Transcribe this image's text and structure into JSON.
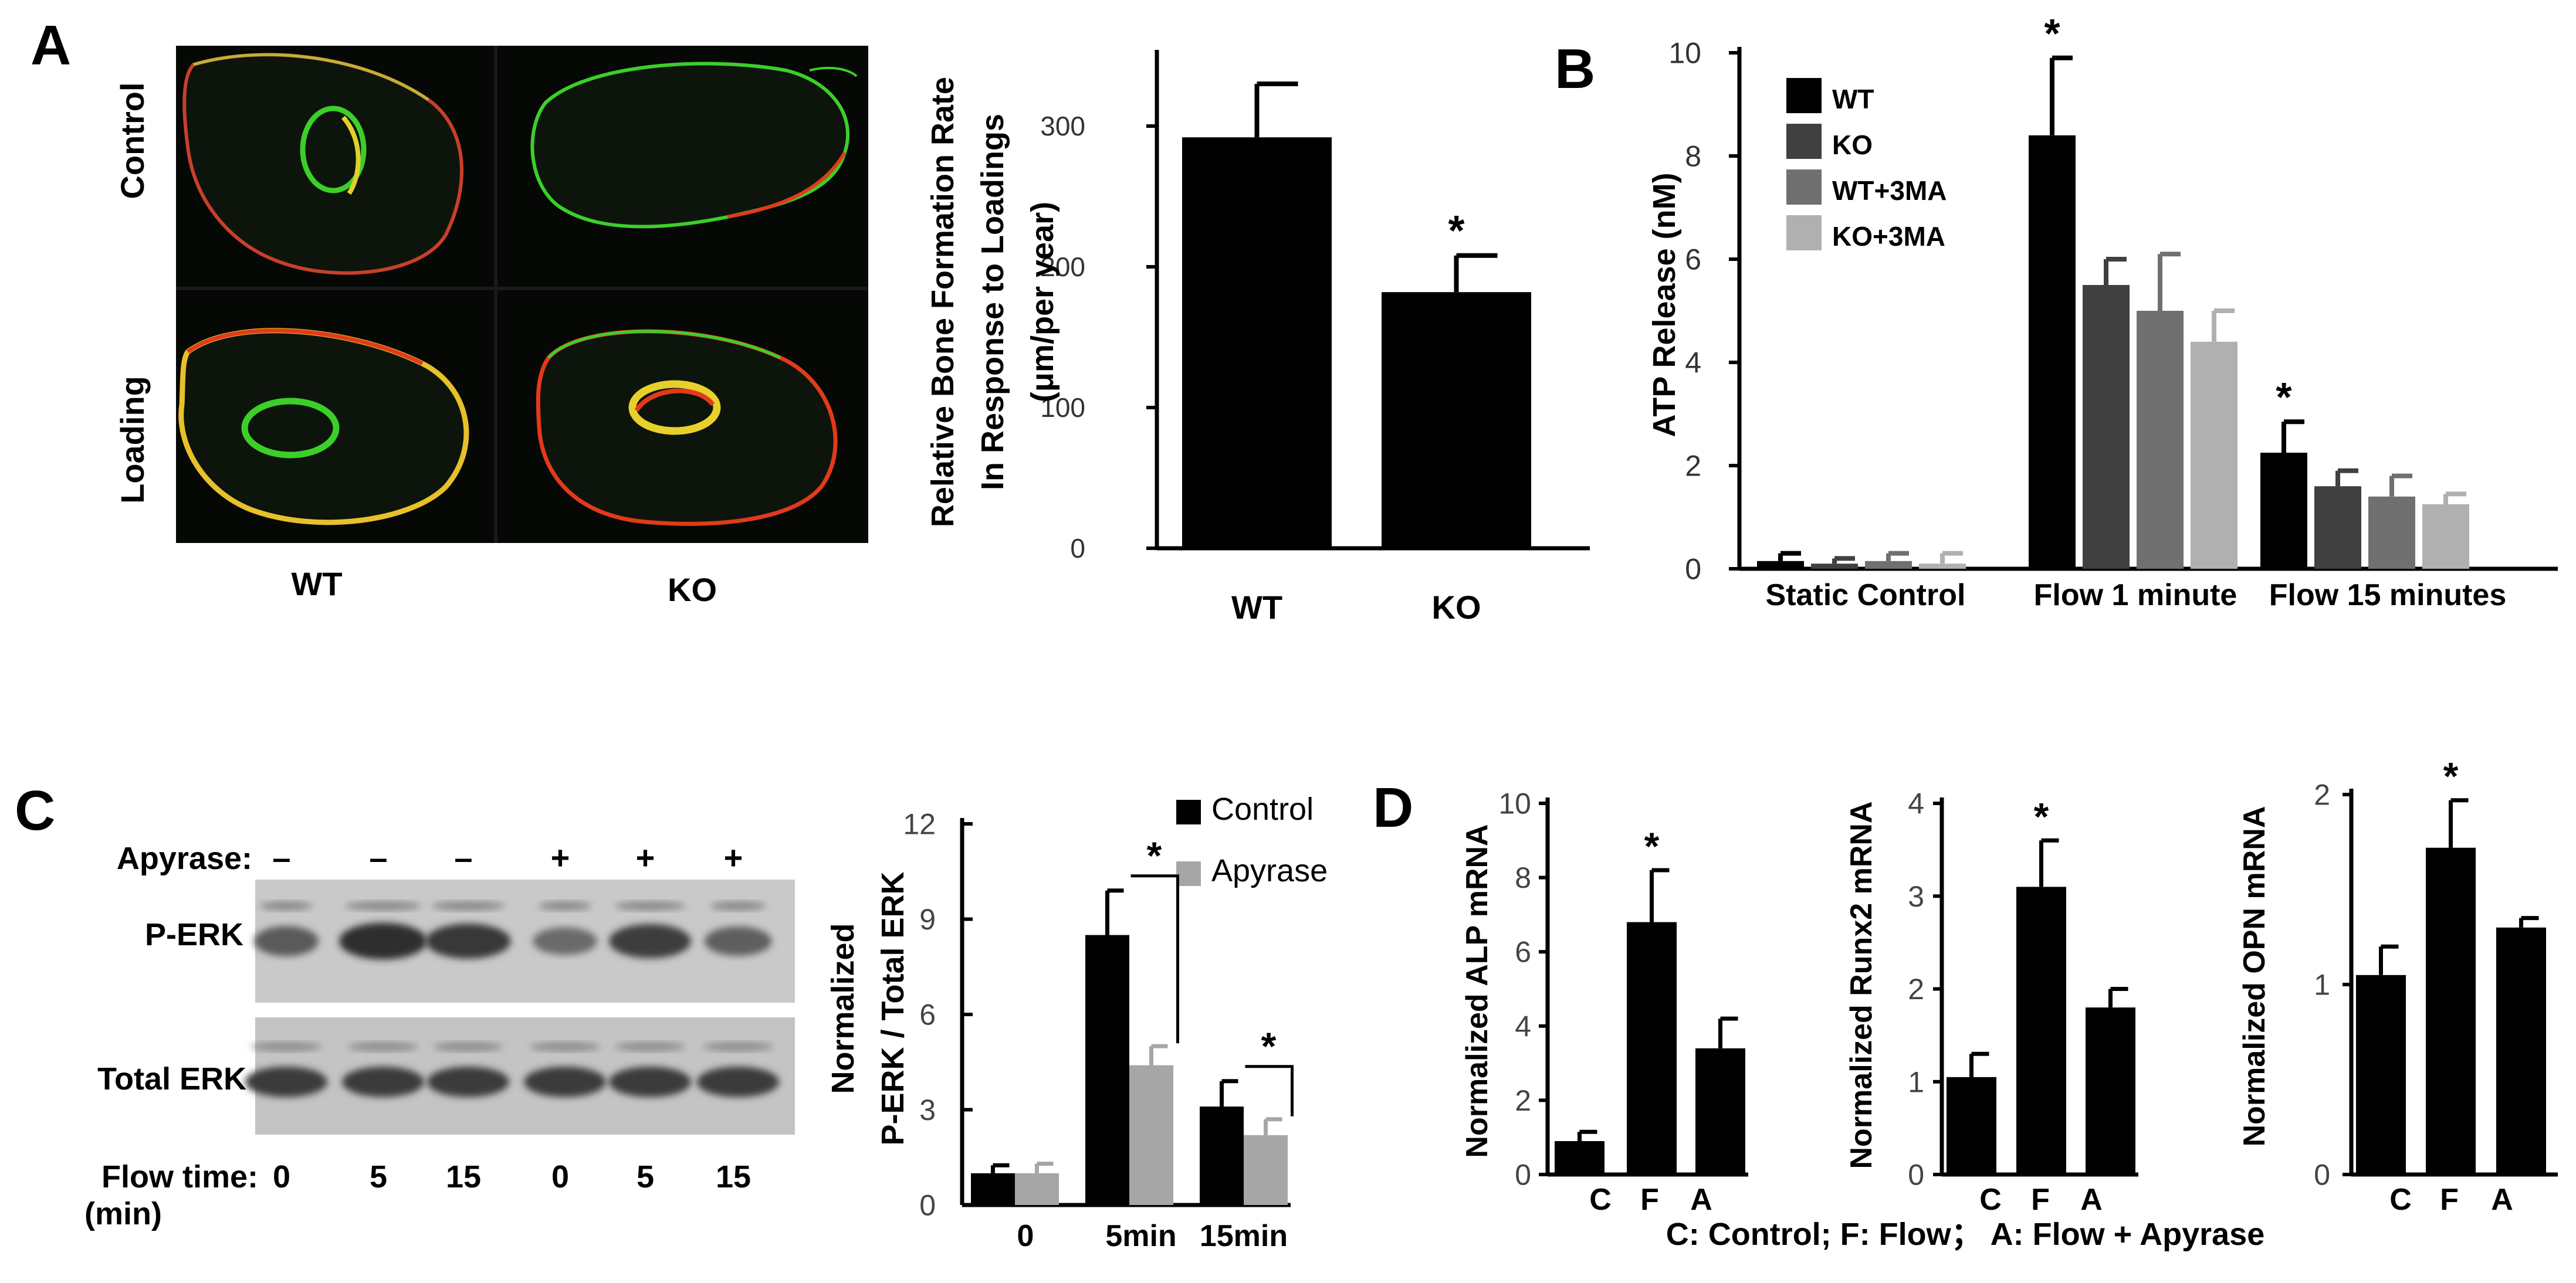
{
  "panels": {
    "A": {
      "letter": "A",
      "row_labels": [
        "Control",
        "Loading"
      ],
      "col_labels": [
        "WT",
        "KO"
      ]
    },
    "B": {
      "letter": "B"
    },
    "C": {
      "letter": "C",
      "apyrase_label": "Apyrase:",
      "apyrase_signs": [
        "–",
        "–",
        "–",
        "+",
        "+",
        "+"
      ],
      "band_labels": [
        "P-ERK",
        "Total ERK"
      ],
      "flow_time_label": [
        "Flow time:",
        "(min)"
      ],
      "flow_times": [
        "0",
        "5",
        "15",
        "0",
        "5",
        "15"
      ]
    },
    "D": {
      "letter": "D",
      "footnote": "C: Control;  F: Flow；  A: Flow + Apyrase"
    }
  },
  "colors": {
    "black_bar": "#000000",
    "ko_bar": "#404040",
    "wt3ma_bar": "#707070",
    "ko3ma_bar": "#b0b0b0",
    "apyrase_bar": "#a6a6a6",
    "green_stain": "#3ccf2a",
    "red_stain": "#e23a1a"
  },
  "chart_data": [
    {
      "id": "A-bar",
      "type": "bar",
      "categories": [
        "WT",
        "KO"
      ],
      "values": [
        292,
        182
      ],
      "errors": [
        38,
        26
      ],
      "significance": [
        "",
        "*"
      ],
      "title": "",
      "xlabel": "",
      "ylabel": [
        "Relative Bone Formation Rate",
        "In Response to Loadings",
        "(μm/per year)"
      ],
      "ylim": [
        0,
        350
      ],
      "yticks": [
        0,
        100,
        200,
        300
      ],
      "grid": false
    },
    {
      "id": "B-bar",
      "type": "bar",
      "categories": [
        "Static Control",
        "Flow 1 minute",
        "Flow 15 minutes"
      ],
      "series": [
        {
          "name": "WT",
          "values": [
            0.15,
            8.4,
            2.25
          ],
          "errors": [
            0.15,
            1.5,
            0.6
          ]
        },
        {
          "name": "KO",
          "values": [
            0.1,
            5.5,
            1.6
          ],
          "errors": [
            0.1,
            0.5,
            0.3
          ]
        },
        {
          "name": "WT+3MA",
          "values": [
            0.15,
            5.0,
            1.4
          ],
          "errors": [
            0.15,
            1.1,
            0.4
          ]
        },
        {
          "name": "KO+3MA",
          "values": [
            0.1,
            4.4,
            1.25
          ],
          "errors": [
            0.2,
            0.6,
            0.2
          ]
        }
      ],
      "significance": [
        [
          "",
          "",
          "",
          ""
        ],
        [
          "*",
          "",
          "",
          ""
        ],
        [
          "*",
          "",
          "",
          ""
        ]
      ],
      "title": "",
      "xlabel": "",
      "ylabel": "ATP Release (nM)",
      "ylim": [
        0,
        10
      ],
      "yticks": [
        0,
        2,
        4,
        6,
        8,
        10
      ],
      "legend_position": "top-left",
      "grid": false
    },
    {
      "id": "C-bar",
      "type": "bar",
      "categories": [
        "0",
        "5min",
        "15min"
      ],
      "series": [
        {
          "name": "Control",
          "values": [
            1.0,
            8.5,
            3.1
          ],
          "errors": [
            0.25,
            1.4,
            0.8
          ]
        },
        {
          "name": "Apyrase",
          "values": [
            1.0,
            4.4,
            2.2
          ],
          "errors": [
            0.3,
            0.6,
            0.5
          ]
        }
      ],
      "comparisons": [
        "*",
        "*"
      ],
      "title": "",
      "xlabel": "",
      "ylabel": [
        "Normalized",
        "P-ERK / Total ERK"
      ],
      "ylim": [
        0,
        12
      ],
      "yticks": [
        0,
        3,
        6,
        9,
        12
      ],
      "legend_position": "top-right",
      "grid": false
    },
    {
      "id": "D-ALP",
      "type": "bar",
      "categories": [
        "C",
        "F",
        "A"
      ],
      "values": [
        0.9,
        6.8,
        3.4
      ],
      "errors": [
        0.25,
        1.4,
        0.8
      ],
      "significance": [
        "",
        "*",
        ""
      ],
      "ylabel": "Normalized ALP mRNA",
      "ylim": [
        0,
        10
      ],
      "yticks": [
        0,
        2,
        4,
        6,
        8,
        10
      ],
      "grid": false
    },
    {
      "id": "D-Runx2",
      "type": "bar",
      "categories": [
        "C",
        "F",
        "A"
      ],
      "values": [
        1.05,
        3.1,
        1.8
      ],
      "errors": [
        0.25,
        0.5,
        0.2
      ],
      "significance": [
        "",
        "*",
        ""
      ],
      "ylabel": "Normalized Runx2  mRNA",
      "ylim": [
        0,
        4
      ],
      "yticks": [
        0,
        1,
        2,
        3,
        4
      ],
      "grid": false
    },
    {
      "id": "D-OPN",
      "type": "bar",
      "categories": [
        "C",
        "F",
        "A"
      ],
      "values": [
        1.05,
        1.72,
        1.3
      ],
      "errors": [
        0.15,
        0.25,
        0.05
      ],
      "significance": [
        "",
        "*",
        ""
      ],
      "ylabel": "Normalized OPN  mRNA",
      "ylim": [
        0,
        2
      ],
      "yticks": [
        0,
        1,
        2
      ],
      "grid": false
    }
  ]
}
